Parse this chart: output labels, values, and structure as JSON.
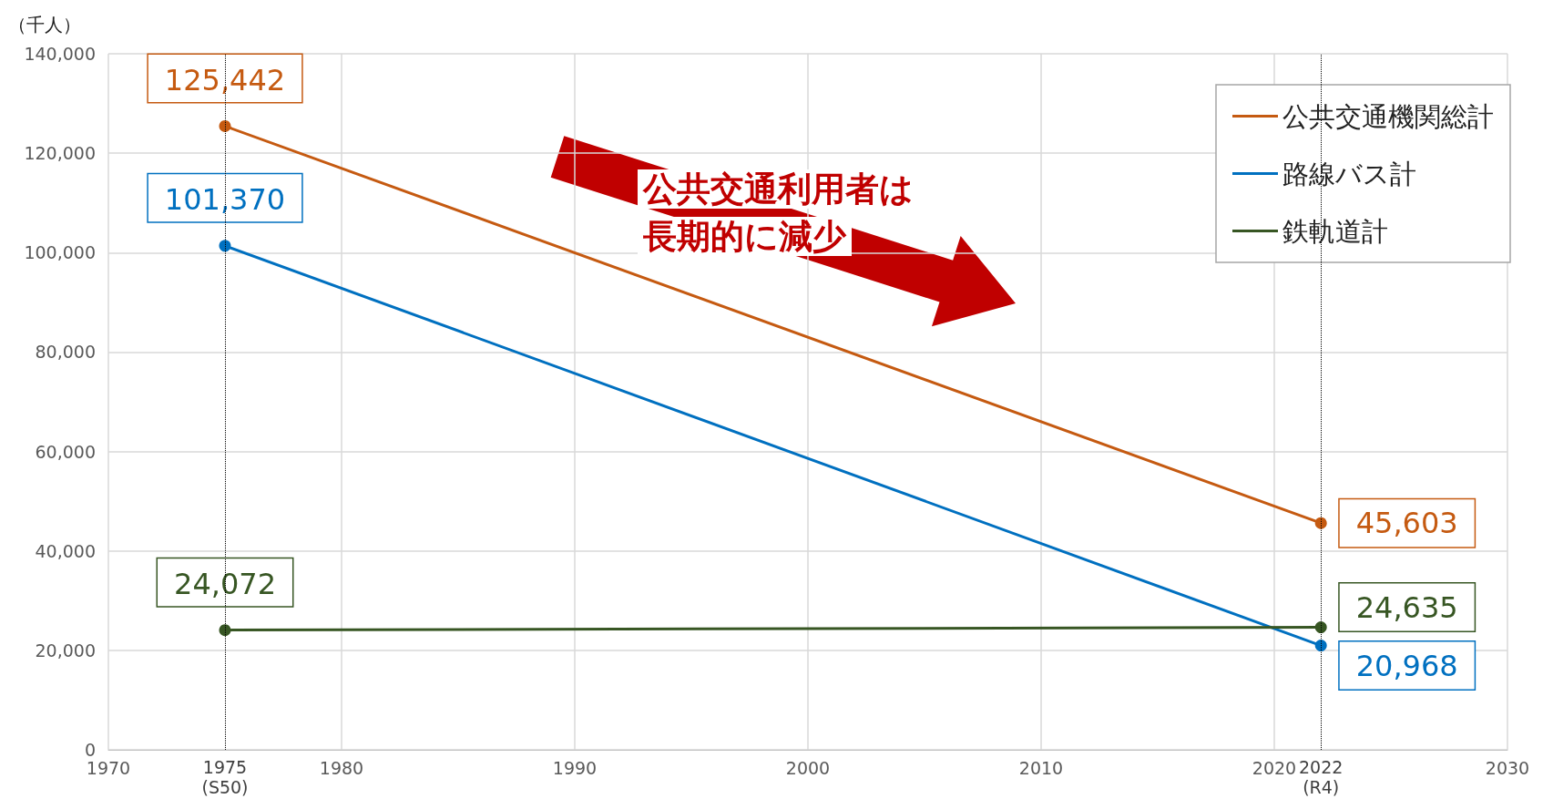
{
  "chart_data": {
    "type": "line",
    "ylabel": "（千人）",
    "xlim": [
      1970,
      2030
    ],
    "xticks": [
      1970,
      1980,
      1990,
      2000,
      2010,
      2020,
      2030
    ],
    "ylim": [
      0,
      140000
    ],
    "yticks": [
      0,
      {
        "value": 20000,
        "label": "20,000"
      },
      {
        "value": 40000,
        "label": "40,000"
      },
      {
        "value": 60000,
        "label": "60,000"
      },
      {
        "value": 80000,
        "label": "80,000"
      },
      {
        "value": 100000,
        "label": "100,000"
      },
      {
        "value": 120000,
        "label": "120,000"
      },
      {
        "value": 140000,
        "label": "140,000"
      }
    ],
    "x": [
      1975,
      2022
    ],
    "series": [
      {
        "name": "公共交通機関総計",
        "color": "#c55a11",
        "values": [
          125442,
          45603
        ],
        "value_labels": [
          "125,442",
          "45,603"
        ]
      },
      {
        "name": "路線バス計",
        "color": "#0070c0",
        "values": [
          101370,
          20968
        ],
        "value_labels": [
          "101,370",
          "20,968"
        ]
      },
      {
        "name": "鉄軌道計",
        "color": "#375623",
        "values": [
          24072,
          24635
        ],
        "value_labels": [
          "24,072",
          "24,635"
        ]
      }
    ],
    "ref_lines": [
      {
        "axis": "x",
        "value": 1975,
        "label": "1975\n(S50)",
        "line_style": "dotted",
        "color": "#000000"
      },
      {
        "axis": "x",
        "value": 2022,
        "label": "2022\n(R4)",
        "line_style": "dotted",
        "color": "#000000"
      }
    ],
    "annotations": [
      "公共交通利用者は",
      "長期的に減少"
    ],
    "grid": true,
    "legend": "top right",
    "marker": "circle",
    "line_style": "solid"
  }
}
